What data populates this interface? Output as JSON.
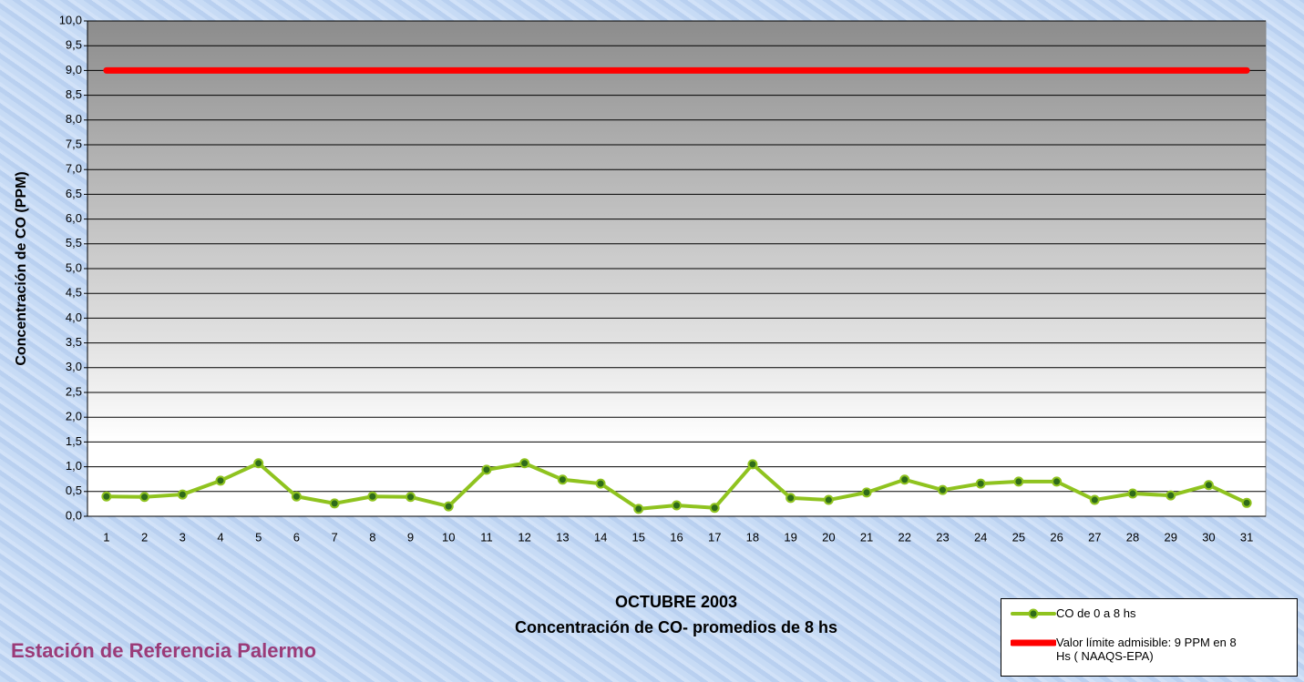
{
  "chart_data": {
    "type": "line",
    "title": "OCTUBRE 2003",
    "subtitle": "Concentración de CO- promedios de 8 hs",
    "y_label": "Concentración de CO (PPM)",
    "annotation": "Estación de Referencia Palermo",
    "categories": [
      "1",
      "2",
      "3",
      "4",
      "5",
      "6",
      "7",
      "8",
      "9",
      "10",
      "11",
      "12",
      "13",
      "14",
      "15",
      "16",
      "17",
      "18",
      "19",
      "20",
      "21",
      "22",
      "23",
      "24",
      "25",
      "26",
      "27",
      "28",
      "29",
      "30",
      "31"
    ],
    "series": [
      {
        "name": "CO de 0 a 8 hs",
        "color": "#8fc31f",
        "marker": true,
        "values": [
          0.4,
          0.39,
          0.44,
          0.72,
          1.07,
          0.4,
          0.26,
          0.4,
          0.39,
          0.2,
          0.94,
          1.07,
          0.74,
          0.66,
          0.15,
          0.22,
          0.17,
          1.05,
          0.37,
          0.33,
          0.48,
          0.74,
          0.53,
          0.66,
          0.7,
          0.7,
          0.33,
          0.46,
          0.42,
          0.63,
          0.27
        ]
      },
      {
        "name": "Valor límite admisible: 9 PPM en 8 Hs ( NAAQS-EPA)",
        "color": "#ff0000",
        "marker": false,
        "values": [
          9,
          9,
          9,
          9,
          9,
          9,
          9,
          9,
          9,
          9,
          9,
          9,
          9,
          9,
          9,
          9,
          9,
          9,
          9,
          9,
          9,
          9,
          9,
          9,
          9,
          9,
          9,
          9,
          9,
          9,
          9
        ]
      }
    ],
    "ylim": [
      0,
      10
    ],
    "yticks": [
      {
        "value": 0,
        "label": "0,0"
      },
      {
        "value": 0.5,
        "label": "0,5"
      },
      {
        "value": 1,
        "label": "1,0"
      },
      {
        "value": 1.5,
        "label": "1,5"
      },
      {
        "value": 2,
        "label": "2,0"
      },
      {
        "value": 2.5,
        "label": "2,5"
      },
      {
        "value": 3,
        "label": "3,0"
      },
      {
        "value": 3.5,
        "label": "3,5"
      },
      {
        "value": 4,
        "label": "4,0"
      },
      {
        "value": 4.5,
        "label": "4,5"
      },
      {
        "value": 5,
        "label": "5,0"
      },
      {
        "value": 5.5,
        "label": "5,5"
      },
      {
        "value": 6,
        "label": "6,0"
      },
      {
        "value": 6.5,
        "label": "6,5"
      },
      {
        "value": 7,
        "label": "7,0"
      },
      {
        "value": 7.5,
        "label": "7,5"
      },
      {
        "value": 8,
        "label": "8,0"
      },
      {
        "value": 8.5,
        "label": "8,5"
      },
      {
        "value": 9,
        "label": "9,0"
      },
      {
        "value": 9.5,
        "label": "9,5"
      },
      {
        "value": 10,
        "label": "10,0"
      }
    ],
    "grid": true,
    "legend": "bottom-right"
  }
}
